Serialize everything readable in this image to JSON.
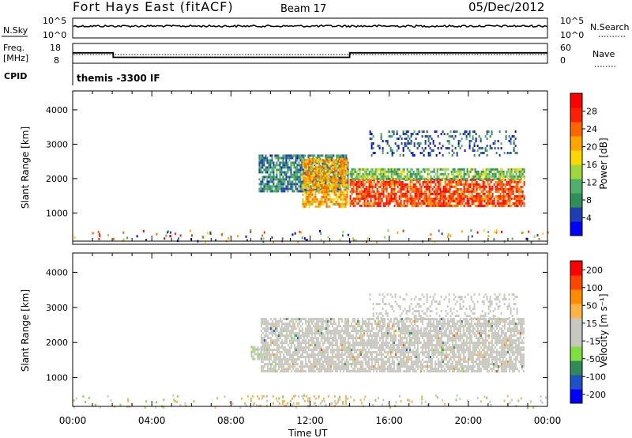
{
  "header": {
    "station": "Fort Hays East (fitACF)",
    "beam": "Beam 17",
    "date": "05/Dec/2012"
  },
  "summary": {
    "nsky_label": "N.Sky",
    "nsky_ticks": [
      "10^5",
      "10^0"
    ],
    "nsearch_label": "N.Search",
    "nsearch_ticks": [
      "10^5",
      "10^0"
    ],
    "freq_label_1": "Freq.",
    "freq_label_2": "[MHz]",
    "freq_ticks": [
      "18",
      "8"
    ],
    "nave_label": "Nave",
    "nave_ticks": [
      "60",
      "0"
    ],
    "cpid_label": "CPID",
    "cpid_text": "themis -3300 IF",
    "freq_steps": [
      [
        0.0,
        13.3
      ],
      [
        2.05,
        11.0
      ],
      [
        14.0,
        13.3
      ],
      [
        24.0,
        13.3
      ]
    ]
  },
  "x_axis": {
    "title": "Time UT",
    "ticks": [
      "00:00",
      "04:00",
      "08:00",
      "12:00",
      "16:00",
      "20:00",
      "00:00"
    ],
    "tick_hours": [
      0,
      4,
      8,
      12,
      16,
      20,
      24
    ],
    "range_hours": [
      0,
      24
    ]
  },
  "colors": {
    "power_scale": [
      "#0000ff",
      "#1e3fb4",
      "#2f8f57",
      "#4fb06a",
      "#9ed73e",
      "#ffd700",
      "#ffa500",
      "#ff6600",
      "#ff2000",
      "#ff0000"
    ],
    "velocity_scale": [
      "#ff0000",
      "#ff4500",
      "#ff8c00",
      "#ffb347",
      "#c8c8c0",
      "#c8c8c0",
      "#7fdf3f",
      "#2e8b57",
      "#1e50c8",
      "#0000ff"
    ],
    "axis": "#000000"
  },
  "chart_data": [
    {
      "type": "heatmap",
      "name": "power",
      "xlabel": "",
      "ylabel": "Slant Range [km]",
      "y_ticks": [
        "1000",
        "2000",
        "3000",
        "4000"
      ],
      "y_tick_values": [
        1000,
        2000,
        3000,
        4000
      ],
      "ylim": [
        180,
        4550
      ],
      "xlim": [
        0,
        24
      ],
      "colorbar_label": "Power [dB]",
      "colorbar_ticks": [
        "4",
        "8",
        "12",
        "16",
        "20",
        "24",
        "28"
      ],
      "colorbar_range": [
        0,
        32
      ],
      "echo_regions": [
        {
          "x": [
            9.4,
            13.9
          ],
          "y": [
            1600,
            2700
          ],
          "value": 8,
          "desc": "early band"
        },
        {
          "x": [
            11.6,
            13.9
          ],
          "y": [
            1200,
            2600
          ],
          "value": 20,
          "desc": "descending band"
        },
        {
          "x": [
            14.0,
            22.8
          ],
          "y": [
            1200,
            2000
          ],
          "value": 26,
          "desc": "strong band"
        },
        {
          "x": [
            14.0,
            22.8
          ],
          "y": [
            2000,
            2300
          ],
          "value": 12,
          "desc": "upper fringe"
        },
        {
          "x": [
            15.0,
            22.5
          ],
          "y": [
            2700,
            3400
          ],
          "value": 6,
          "desc": "high range patches"
        }
      ]
    },
    {
      "type": "heatmap",
      "name": "velocity",
      "xlabel": "Time UT",
      "ylabel": "Slant Range [km]",
      "y_ticks": [
        "1000",
        "2000",
        "3000",
        "4000"
      ],
      "y_tick_values": [
        1000,
        2000,
        3000,
        4000
      ],
      "ylim": [
        180,
        4550
      ],
      "xlim": [
        0,
        24
      ],
      "colorbar_label": "Velocity [m s⁻¹]",
      "colorbar_ticks": [
        "200",
        "100",
        "50",
        "15",
        "-15",
        "-50",
        "-100",
        "-200"
      ],
      "colorbar_range": [
        -250,
        250
      ],
      "echo_regions": [
        {
          "x": [
            9.5,
            22.8
          ],
          "y": [
            1200,
            2700
          ],
          "value": 0,
          "desc": "ground scatter"
        },
        {
          "x": [
            9.0,
            9.8
          ],
          "y": [
            1550,
            1900
          ],
          "value": 40,
          "desc": "green patch"
        },
        {
          "x": [
            15.0,
            22.5
          ],
          "y": [
            2700,
            3400
          ],
          "value": 0,
          "desc": "high range patches"
        },
        {
          "x": [
            8.5,
            14.0
          ],
          "y": [
            180,
            500
          ],
          "value": -60,
          "desc": "near range orange"
        }
      ]
    }
  ]
}
